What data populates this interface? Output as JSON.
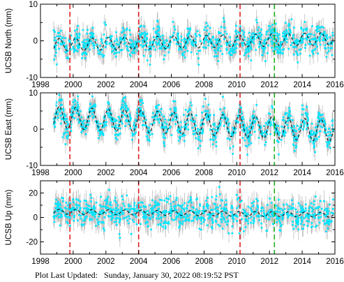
{
  "footer": {
    "label": "Plot Last Updated:",
    "timestamp": "Sunday, January 30, 2022 08:19:52 PST"
  },
  "colors": {
    "data": "#00e5ff",
    "error_bars": "#b4b4b4",
    "model": "#000000",
    "event_red": "#e02020",
    "event_green": "#20b020"
  },
  "chart_data": [
    {
      "type": "scatter",
      "ylabel": "UCSB North (mm)",
      "xlim": [
        1998,
        2016
      ],
      "ylim": [
        -10,
        10
      ],
      "xticks": [
        "1998",
        "2000",
        "2002",
        "2004",
        "2006",
        "2008",
        "2010",
        "2012",
        "2014",
        "2016"
      ],
      "yticks": [
        "10",
        "0",
        "-10"
      ],
      "x_range": [
        1998.8,
        2015.9
      ],
      "model": {
        "trend_mm_per_yr": 0.1,
        "seasonal_amplitude_mm": 1.7,
        "noise_sd_mm": 1.8,
        "offset_mm": -0.3
      },
      "event_lines": [
        {
          "year": 1999.8,
          "color": "red"
        },
        {
          "year": 2004.0,
          "color": "red"
        },
        {
          "year": 2010.2,
          "color": "red"
        },
        {
          "year": 2012.3,
          "color": "green"
        }
      ]
    },
    {
      "type": "scatter",
      "ylabel": "UCSB East (mm)",
      "xlim": [
        1998,
        2016
      ],
      "ylim": [
        -10,
        10
      ],
      "xticks": [
        "1998",
        "2000",
        "2002",
        "2004",
        "2006",
        "2008",
        "2010",
        "2012",
        "2014",
        "2016"
      ],
      "yticks": [
        "10",
        "0",
        "-10"
      ],
      "x_range": [
        1998.8,
        2015.9
      ],
      "model": {
        "trend_mm_per_yr": -0.22,
        "seasonal_amplitude_mm": 3.0,
        "noise_sd_mm": 1.8,
        "offset_mm": 1.5
      },
      "event_lines": [
        {
          "year": 1999.8,
          "color": "red"
        },
        {
          "year": 2004.0,
          "color": "red"
        },
        {
          "year": 2010.2,
          "color": "red"
        },
        {
          "year": 2012.3,
          "color": "green"
        }
      ]
    },
    {
      "type": "scatter",
      "ylabel": "UCSB Up (mm)",
      "xlim": [
        1998,
        2016
      ],
      "ylim": [
        -30,
        30
      ],
      "xticks": [
        "1998",
        "2000",
        "2002",
        "2004",
        "2006",
        "2008",
        "2010",
        "2012",
        "2014",
        "2016"
      ],
      "yticks": [
        "20",
        "0",
        "-20"
      ],
      "x_range": [
        1998.8,
        2015.9
      ],
      "model": {
        "trend_mm_per_yr": -0.15,
        "seasonal_amplitude_mm": 2.0,
        "noise_sd_mm": 6.0,
        "offset_mm": 3.5
      },
      "event_lines": [
        {
          "year": 1999.8,
          "color": "red"
        },
        {
          "year": 2004.0,
          "color": "red"
        },
        {
          "year": 2010.2,
          "color": "red"
        },
        {
          "year": 2012.3,
          "color": "green"
        }
      ]
    }
  ]
}
